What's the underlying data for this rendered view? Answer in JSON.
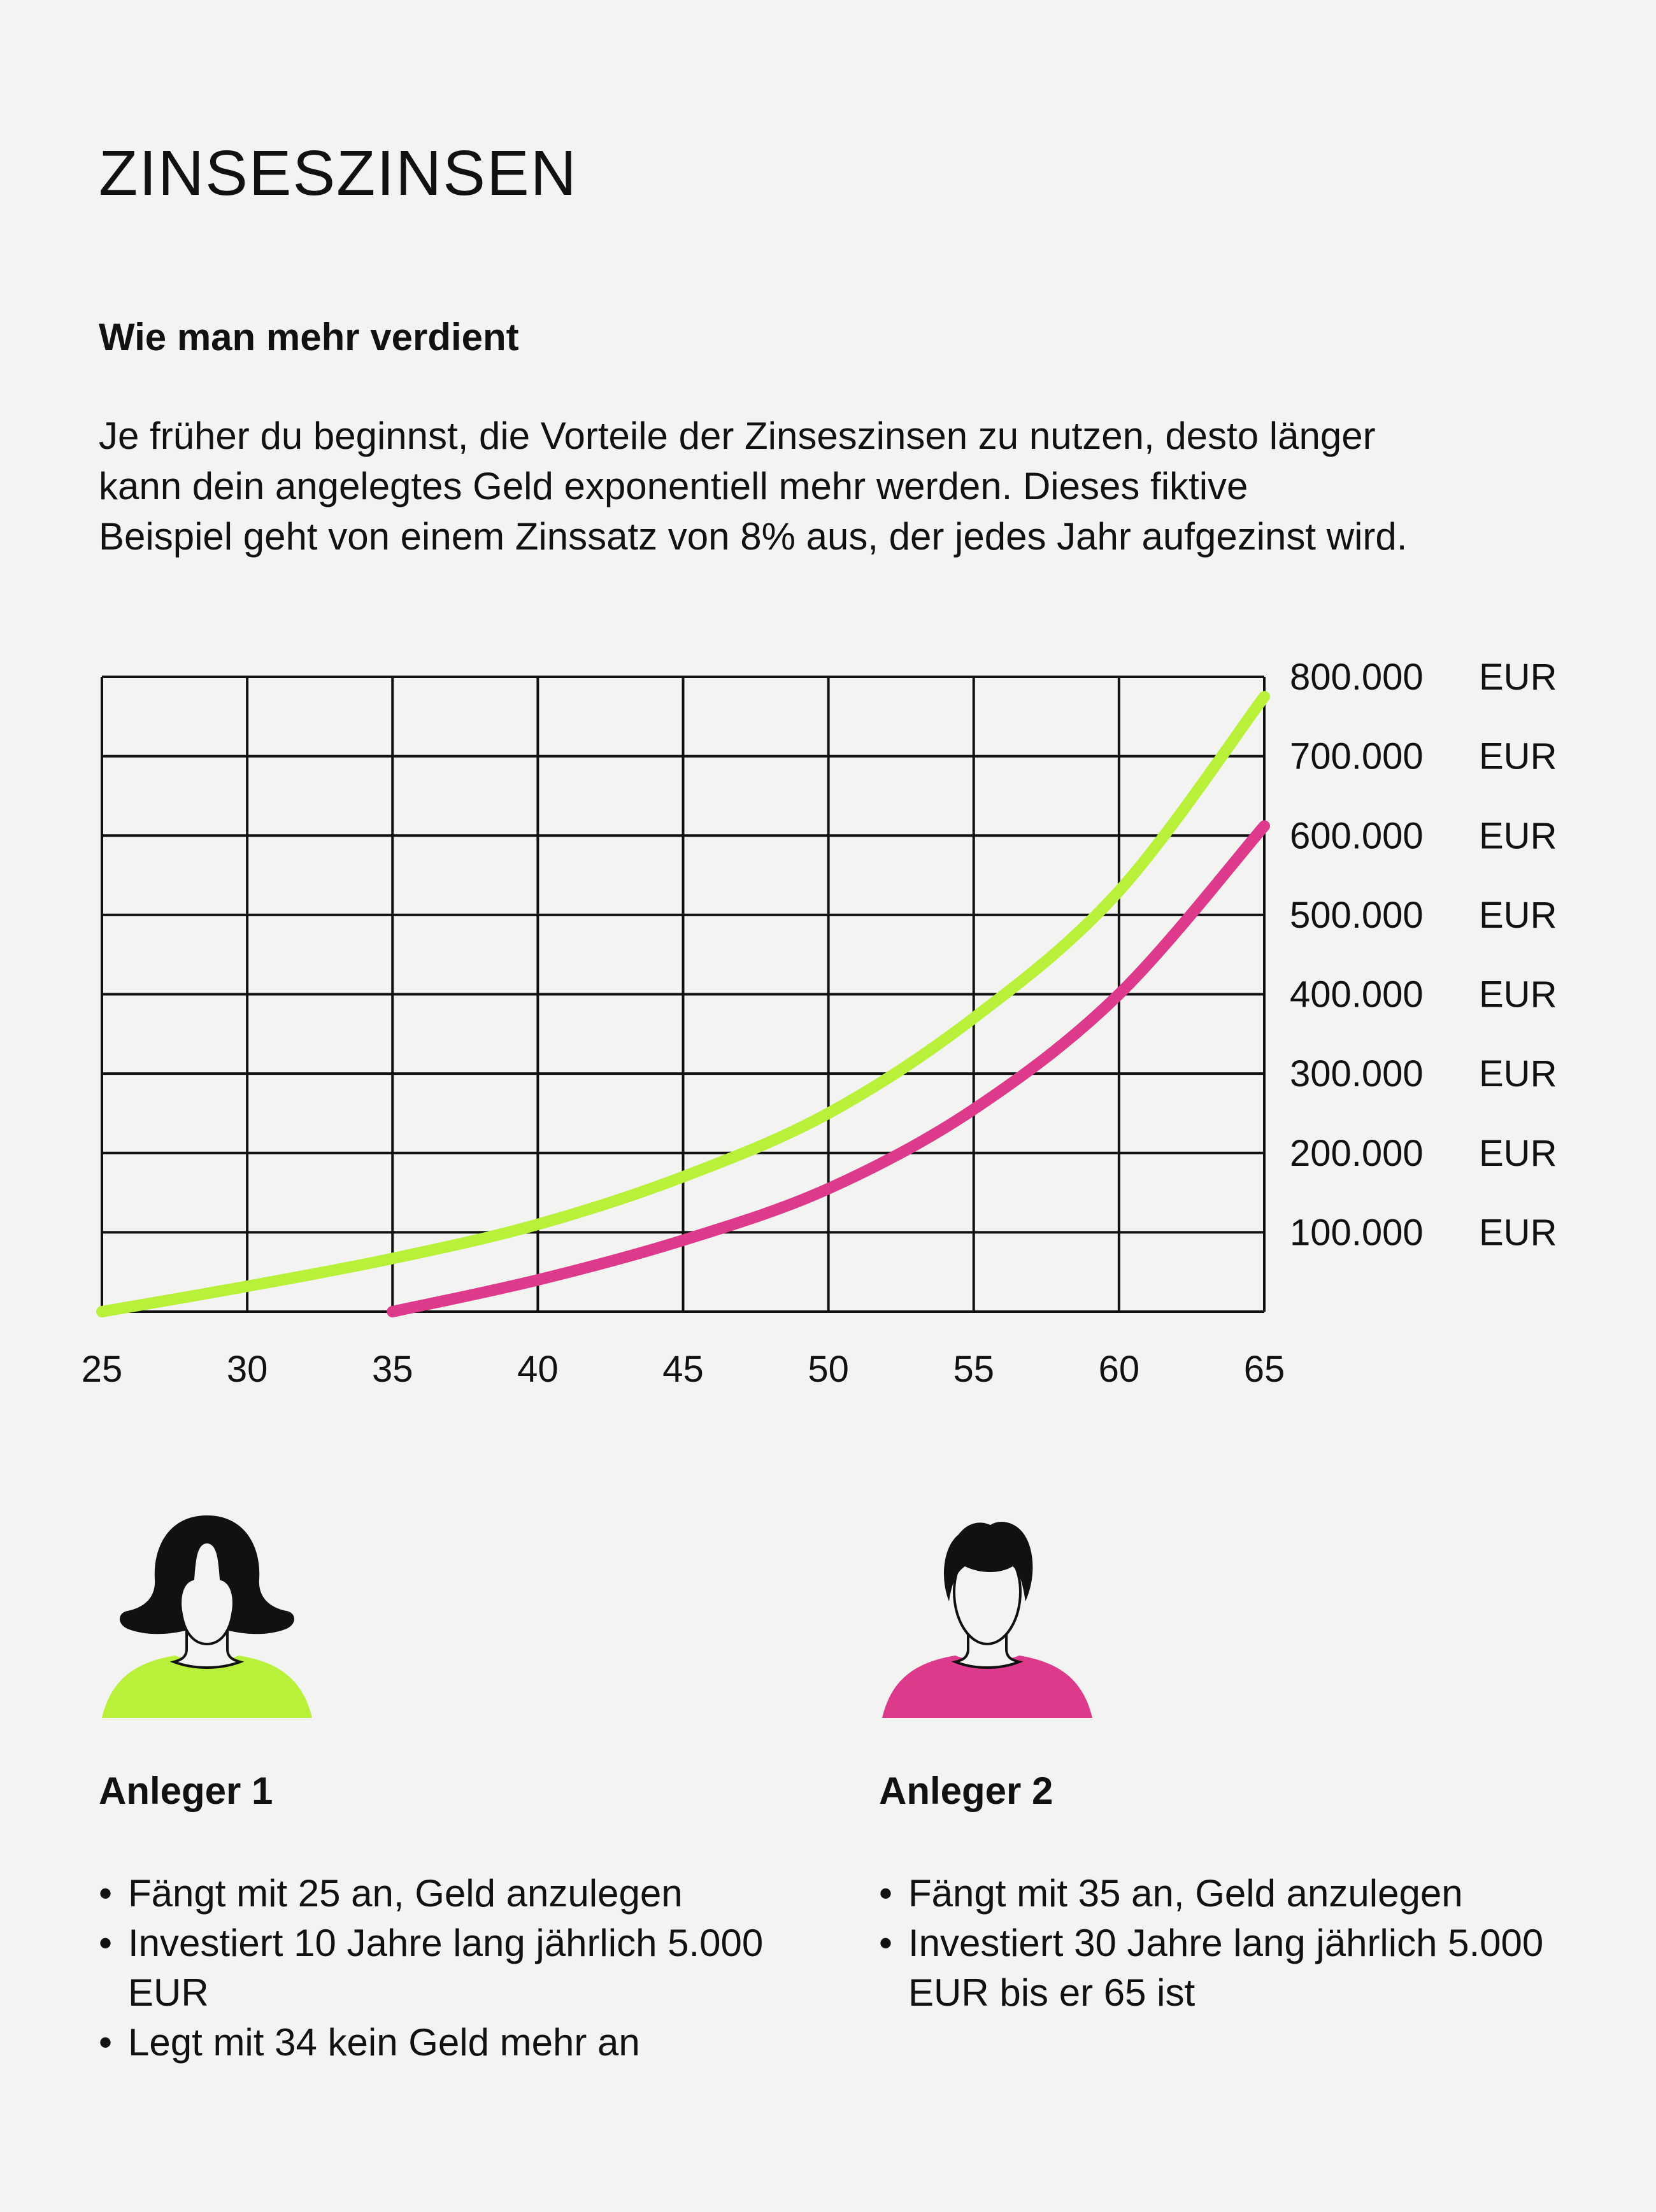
{
  "title": "ZINSESZINSEN",
  "subtitle": "Wie man mehr verdient",
  "intro_lines": [
    "Je früher du beginnst, die Vorteile der Zinseszinsen zu nutzen, desto länger",
    "kann dein angelegtes Geld exponentiell mehr werden. Dieses fiktive",
    "Beispiel geht von einem Zinssatz von 8% aus, der jedes Jahr aufgezinst wird."
  ],
  "colors": {
    "background": "#f3f3f1",
    "series1": "#b8f03a",
    "series2": "#dd3a8c",
    "grid": "#111111"
  },
  "chart_data": {
    "type": "line",
    "xlim": [
      25,
      65
    ],
    "ylim": [
      0,
      800000
    ],
    "x_ticks": [
      "25",
      "30",
      "35",
      "40",
      "45",
      "50",
      "55",
      "60",
      "65"
    ],
    "y_ticks": [
      {
        "value": 800000,
        "label": "800.000",
        "unit": "EUR"
      },
      {
        "value": 700000,
        "label": "700.000",
        "unit": "EUR"
      },
      {
        "value": 600000,
        "label": "600.000",
        "unit": "EUR"
      },
      {
        "value": 500000,
        "label": "500.000",
        "unit": "EUR"
      },
      {
        "value": 400000,
        "label": "400.000",
        "unit": "EUR"
      },
      {
        "value": 300000,
        "label": "300.000",
        "unit": "EUR"
      },
      {
        "value": 200000,
        "label": "200.000",
        "unit": "EUR"
      },
      {
        "value": 100000,
        "label": "100.000",
        "unit": "EUR"
      }
    ],
    "grid": true,
    "y_axis_position": "right",
    "series": [
      {
        "color": "#b8f03a",
        "x": [
          25,
          30,
          35,
          40,
          45,
          50,
          55,
          60,
          65
        ],
        "y": [
          0,
          32000,
          67000,
          110000,
          170000,
          250000,
          370000,
          530000,
          775000
        ]
      },
      {
        "color": "#dd3a8c",
        "x": [
          35,
          40,
          45,
          50,
          55,
          60,
          65
        ],
        "y": [
          0,
          40000,
          90000,
          155000,
          255000,
          400000,
          612000
        ]
      }
    ]
  },
  "investors": [
    {
      "name": "Anleger 1",
      "avatar": "woman-avatar-icon",
      "color": "#b8f03a",
      "points": [
        "Fängt mit 25 an, Geld anzulegen",
        "Investiert 10 Jahre lang jährlich 5.000 EUR",
        "Legt mit 34 kein Geld mehr an"
      ]
    },
    {
      "name": "Anleger 2",
      "avatar": "man-avatar-icon",
      "color": "#dd3a8c",
      "points": [
        "Fängt mit 35 an, Geld anzulegen",
        "Investiert 30 Jahre lang jährlich 5.000 EUR bis er 65 ist"
      ]
    }
  ]
}
